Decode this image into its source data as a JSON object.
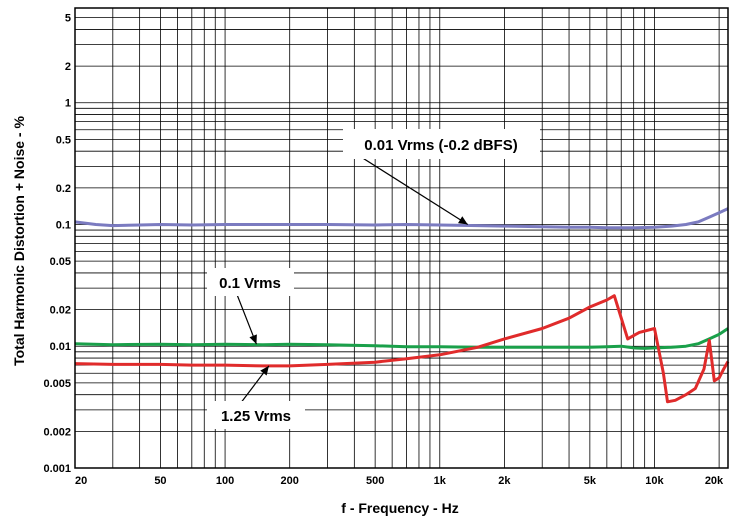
{
  "chart_data": {
    "type": "line",
    "title": "",
    "xlabel": "f - Frequency - Hz",
    "ylabel": "Total Harmonic Distortion + Noise - %",
    "x_scale": "log",
    "y_scale": "log",
    "xlim": [
      20,
      22000
    ],
    "ylim": [
      0.001,
      6
    ],
    "grid": true,
    "x_ticks": [
      {
        "value": 20,
        "label": "20"
      },
      {
        "value": 50,
        "label": "50"
      },
      {
        "value": 100,
        "label": "100"
      },
      {
        "value": 200,
        "label": "200"
      },
      {
        "value": 500,
        "label": "500"
      },
      {
        "value": 1000,
        "label": "1k"
      },
      {
        "value": 2000,
        "label": "2k"
      },
      {
        "value": 5000,
        "label": "5k"
      },
      {
        "value": 10000,
        "label": "10k"
      },
      {
        "value": 20000,
        "label": "20k"
      }
    ],
    "y_ticks": [
      {
        "value": 0.001,
        "label": "0.001"
      },
      {
        "value": 0.002,
        "label": "0.002"
      },
      {
        "value": 0.005,
        "label": "0.005"
      },
      {
        "value": 0.01,
        "label": "0.01"
      },
      {
        "value": 0.02,
        "label": "0.02"
      },
      {
        "value": 0.05,
        "label": "0.05"
      },
      {
        "value": 0.1,
        "label": "0.1"
      },
      {
        "value": 0.2,
        "label": "0.2"
      },
      {
        "value": 0.5,
        "label": "0.5"
      },
      {
        "value": 1,
        "label": "1"
      },
      {
        "value": 2,
        "label": "2"
      },
      {
        "value": 5,
        "label": "5"
      }
    ],
    "series": [
      {
        "color": "#7b7bc0",
        "x": [
          20,
          25,
          30,
          40,
          50,
          70,
          100,
          150,
          200,
          300,
          500,
          700,
          1000,
          1500,
          2000,
          3000,
          4000,
          5000,
          6000,
          7000,
          8000,
          10000,
          12000,
          14000,
          16000,
          18000,
          20000,
          22000
        ],
        "y": [
          0.105,
          0.1,
          0.098,
          0.099,
          0.1,
          0.099,
          0.1,
          0.1,
          0.1,
          0.1,
          0.099,
          0.1,
          0.099,
          0.098,
          0.097,
          0.096,
          0.095,
          0.095,
          0.094,
          0.094,
          0.094,
          0.095,
          0.097,
          0.1,
          0.105,
          0.115,
          0.125,
          0.135
        ]
      },
      {
        "color": "#1aa04a",
        "x": [
          20,
          30,
          50,
          70,
          100,
          150,
          200,
          300,
          500,
          700,
          1000,
          1500,
          2000,
          3000,
          4000,
          5000,
          6000,
          7000,
          8000,
          9000,
          10000,
          12000,
          14000,
          16000,
          18000,
          20000,
          22000
        ],
        "y": [
          0.0105,
          0.0103,
          0.0104,
          0.0103,
          0.0104,
          0.0103,
          0.0104,
          0.0103,
          0.0101,
          0.0099,
          0.0099,
          0.0098,
          0.0098,
          0.0098,
          0.0098,
          0.0098,
          0.0099,
          0.01,
          0.0097,
          0.0096,
          0.0097,
          0.0098,
          0.01,
          0.0105,
          0.0115,
          0.0125,
          0.014
        ]
      },
      {
        "color": "#e02b2b",
        "x": [
          20,
          30,
          50,
          70,
          100,
          150,
          200,
          300,
          500,
          700,
          1000,
          1500,
          2000,
          3000,
          4000,
          5000,
          6000,
          6500,
          7500,
          8500,
          10000,
          11000,
          11500,
          12500,
          14000,
          15500,
          17000,
          18000,
          19000,
          20000,
          21000,
          22000
        ],
        "y": [
          0.0072,
          0.0071,
          0.0071,
          0.007,
          0.007,
          0.0069,
          0.0069,
          0.0071,
          0.0074,
          0.0079,
          0.0085,
          0.0098,
          0.0115,
          0.014,
          0.017,
          0.021,
          0.024,
          0.026,
          0.0115,
          0.013,
          0.014,
          0.006,
          0.0035,
          0.0036,
          0.004,
          0.0045,
          0.0065,
          0.0112,
          0.0052,
          0.0055,
          0.0065,
          0.0075
        ]
      }
    ],
    "annotations": [
      {
        "text": "0.01 Vrms (-0.2 dBFS)",
        "target_x": 1350,
        "target_y": 0.1
      },
      {
        "text": "0.1 Vrms",
        "target_x": 140,
        "target_y": 0.0104
      },
      {
        "text": "1.25 Vrms",
        "target_x": 160,
        "target_y": 0.0069
      }
    ]
  }
}
